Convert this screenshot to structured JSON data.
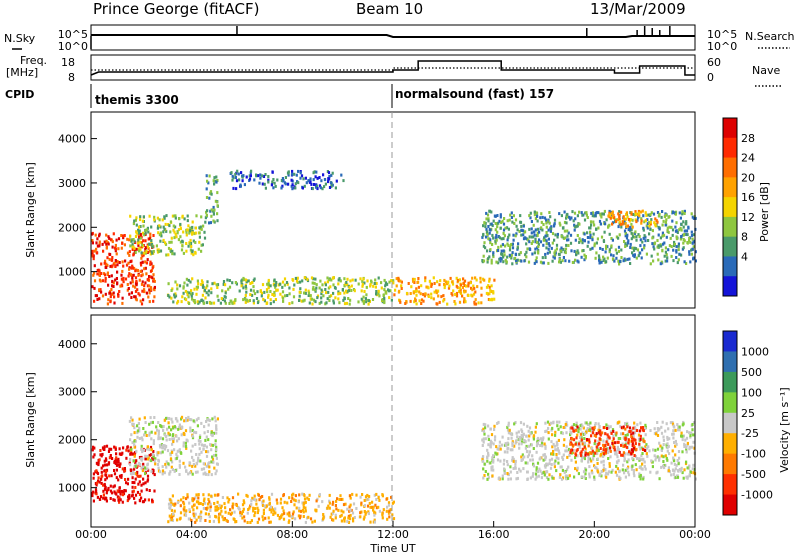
{
  "header": {
    "radar": "Prince George (fitACF)",
    "beam": "Beam 10",
    "date": "13/Mar/2009"
  },
  "noise_panel": {
    "left_label": "N.Sky",
    "left_ticks": [
      "10^5",
      "10^0"
    ],
    "right_label": "N.Search",
    "right_ticks": [
      "10^5",
      "10^0"
    ]
  },
  "freq_panel": {
    "left_label_line1": "Freq.",
    "left_label_line2": "[MHz]",
    "left_ticks": [
      "18",
      "8"
    ],
    "right_label": "Nave",
    "right_ticks": [
      "60",
      "0"
    ]
  },
  "cpid": {
    "label": "CPID",
    "segments": [
      {
        "name": "themis 3300",
        "start_hour": 0
      },
      {
        "name": "normalsound (fast) 157",
        "start_hour": 12
      }
    ]
  },
  "time_axis": {
    "label": "Time UT",
    "ticks": [
      "00:00",
      "04:00",
      "08:00",
      "12:00",
      "16:00",
      "20:00",
      "00:00"
    ]
  },
  "chart_data": [
    {
      "type": "heatmap",
      "title": "",
      "xlabel": "Time UT",
      "ylabel": "Slant Range [km]",
      "xlim_hours": [
        0,
        24
      ],
      "ylim": [
        180,
        4600
      ],
      "yticks": [
        "4000",
        "3000",
        "2000",
        "1000"
      ],
      "yticks_values": [
        4000,
        3000,
        2000,
        1000
      ],
      "colorbar": {
        "label": "Power [dB]",
        "ticks": [
          "28",
          "24",
          "20",
          "16",
          "12",
          "8",
          "4"
        ],
        "colors": [
          "#dd0000",
          "#ff2a00",
          "#ff6e00",
          "#ffa200",
          "#f4d400",
          "#8ec63f",
          "#4a9a6a",
          "#2a6ab8",
          "#1414d8"
        ]
      },
      "features": [
        {
          "t_start": 0.0,
          "t_end": 2.5,
          "range_start": 300,
          "range_end": 1900,
          "value": 28
        },
        {
          "t_start": 1.5,
          "t_end": 4.5,
          "range_start": 1400,
          "range_end": 2300,
          "value": 12
        },
        {
          "t_start": 4.5,
          "t_end": 5.0,
          "range_start": 2100,
          "range_end": 3200,
          "value": 8
        },
        {
          "t_start": 5.5,
          "t_end": 10.0,
          "range_start": 2900,
          "range_end": 3300,
          "value": 6
        },
        {
          "t_start": 3.0,
          "t_end": 12.0,
          "range_start": 300,
          "range_end": 900,
          "value": 14
        },
        {
          "t_start": 12.0,
          "t_end": 16.0,
          "range_start": 300,
          "range_end": 900,
          "value": 18
        },
        {
          "t_start": 15.5,
          "t_end": 24.0,
          "range_start": 1200,
          "range_end": 2400,
          "value": 10
        },
        {
          "t_start": 20.5,
          "t_end": 22.5,
          "range_start": 2000,
          "range_end": 2400,
          "value": 18
        }
      ]
    },
    {
      "type": "heatmap",
      "title": "",
      "xlabel": "Time UT",
      "ylabel": "Slant Range [km]",
      "xlim_hours": [
        0,
        24
      ],
      "ylim": [
        180,
        4600
      ],
      "yticks": [
        "4000",
        "3000",
        "2000",
        "1000"
      ],
      "yticks_values": [
        4000,
        3000,
        2000,
        1000
      ],
      "colorbar": {
        "label": "Velocity [m s⁻¹]",
        "ticks": [
          "1000",
          "500",
          "100",
          "25",
          "-25",
          "-100",
          "-500",
          "-1000"
        ],
        "colors": [
          "#1a2ad0",
          "#2f6fb0",
          "#3c9a5a",
          "#7fd23a",
          "#c8c8c8",
          "#ffaf00",
          "#ff7a00",
          "#ff3000",
          "#e00000"
        ]
      },
      "features": [
        {
          "t_start": 0.0,
          "t_end": 2.5,
          "range_start": 700,
          "range_end": 1900,
          "value": -1000
        },
        {
          "t_start": 1.5,
          "t_end": 5.0,
          "range_start": 1300,
          "range_end": 2500,
          "value": 0
        },
        {
          "t_start": 3.0,
          "t_end": 12.0,
          "range_start": 300,
          "range_end": 900,
          "value": -100
        },
        {
          "t_start": 15.5,
          "t_end": 24.0,
          "range_start": 1200,
          "range_end": 2400,
          "value": 0
        },
        {
          "t_start": 19.0,
          "t_end": 22.0,
          "range_start": 1700,
          "range_end": 2300,
          "value": -500
        }
      ]
    }
  ]
}
